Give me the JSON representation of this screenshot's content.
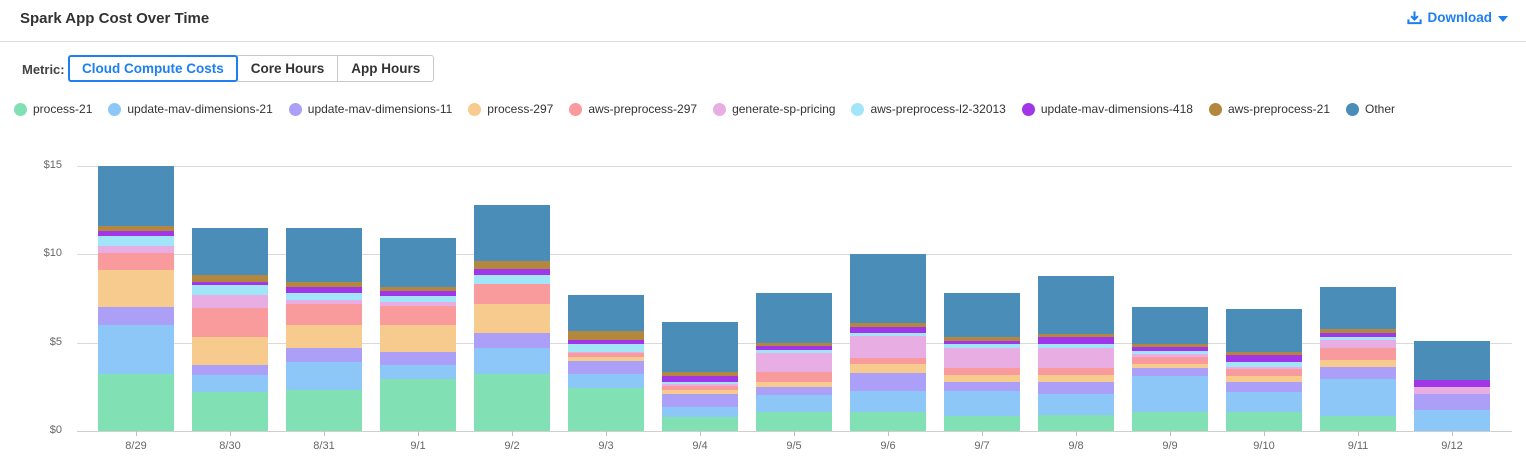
{
  "header": {
    "title": "Spark App Cost Over Time",
    "download_label": "Download"
  },
  "controls": {
    "metric_label": "Metric:",
    "tabs": [
      {
        "label": "Cloud Compute Costs",
        "selected": true
      },
      {
        "label": "Core Hours",
        "selected": false
      },
      {
        "label": "App Hours",
        "selected": false
      }
    ]
  },
  "colors": {
    "accent_blue": "#1E7FF2",
    "grid": "#d9d9d9",
    "axis_text": "#666666",
    "text": "#333333"
  },
  "chart_data": {
    "type": "bar",
    "stacked": true,
    "title": "Spark App Cost Over Time",
    "xlabel": "",
    "ylabel": "",
    "ylim": [
      0,
      15
    ],
    "yticks": [
      0,
      5,
      10,
      15
    ],
    "ytick_prefix": "$",
    "grid": true,
    "legend_position": "top",
    "categories": [
      "8/29",
      "8/30",
      "8/31",
      "9/1",
      "9/2",
      "9/3",
      "9/4",
      "9/5",
      "9/6",
      "9/7",
      "9/8",
      "9/9",
      "9/10",
      "9/11",
      "9/12"
    ],
    "series": [
      {
        "name": "process-21",
        "color": "#82E0B5",
        "values": [
          3.2,
          2.2,
          2.3,
          2.95,
          3.2,
          2.45,
          0.8,
          1.1,
          1.1,
          0.85,
          0.9,
          1.05,
          1.05,
          0.85,
          0
        ]
      },
      {
        "name": "update-mav-dimensions-21",
        "color": "#8CC7F7",
        "values": [
          2.8,
          0.95,
          1.6,
          0.8,
          1.5,
          0.8,
          0.55,
          0.95,
          1.15,
          1.4,
          1.2,
          2.05,
          1.15,
          2.1,
          1.2
        ]
      },
      {
        "name": "update-mav-dimensions-11",
        "color": "#AC9FF7",
        "values": [
          1.0,
          0.6,
          0.8,
          0.75,
          0.85,
          0.7,
          0.75,
          0.45,
          1.05,
          0.55,
          0.7,
          0.45,
          0.6,
          0.7,
          0.9
        ]
      },
      {
        "name": "process-297",
        "color": "#F7CB8E",
        "values": [
          2.1,
          1.55,
          1.3,
          1.5,
          1.65,
          0.25,
          0.25,
          0.3,
          0.5,
          0.35,
          0.35,
          0.25,
          0.3,
          0.35,
          0
        ]
      },
      {
        "name": "aws-preprocess-297",
        "color": "#F99B9C",
        "values": [
          0.95,
          1.65,
          1.2,
          1.05,
          1.15,
          0.2,
          0.2,
          0.55,
          0.35,
          0.4,
          0.4,
          0.4,
          0.4,
          0.7,
          0
        ]
      },
      {
        "name": "generate-sp-pricing",
        "color": "#E8AEE4",
        "values": [
          0.45,
          0.75,
          0.2,
          0.25,
          0,
          0.1,
          0.1,
          1.05,
          1.25,
          1.15,
          1.15,
          0.15,
          0.15,
          0.45,
          0.4
        ]
      },
      {
        "name": "aws-preprocess-l2-32013",
        "color": "#A2E5F8",
        "values": [
          0.55,
          0.55,
          0.4,
          0.35,
          0.5,
          0.45,
          0.15,
          0.2,
          0.15,
          0.25,
          0.2,
          0.2,
          0.25,
          0.2,
          0
        ]
      },
      {
        "name": "update-mav-dimensions-418",
        "color": "#A136E8",
        "values": [
          0.25,
          0.2,
          0.35,
          0.25,
          0.35,
          0.2,
          0.3,
          0.2,
          0.35,
          0.15,
          0.4,
          0.2,
          0.4,
          0.2,
          0.4
        ]
      },
      {
        "name": "aws-preprocess-21",
        "color": "#B3873E",
        "values": [
          0.3,
          0.4,
          0.3,
          0.25,
          0.45,
          0.5,
          0.25,
          0.2,
          0.2,
          0.2,
          0.2,
          0.2,
          0.2,
          0.2,
          0
        ]
      },
      {
        "name": "Other",
        "color": "#4A8DB8",
        "values": [
          3.4,
          2.65,
          3.05,
          2.8,
          3.15,
          2.05,
          2.8,
          2.8,
          3.9,
          2.5,
          3.3,
          2.05,
          2.4,
          2.4,
          2.2
        ]
      }
    ]
  }
}
